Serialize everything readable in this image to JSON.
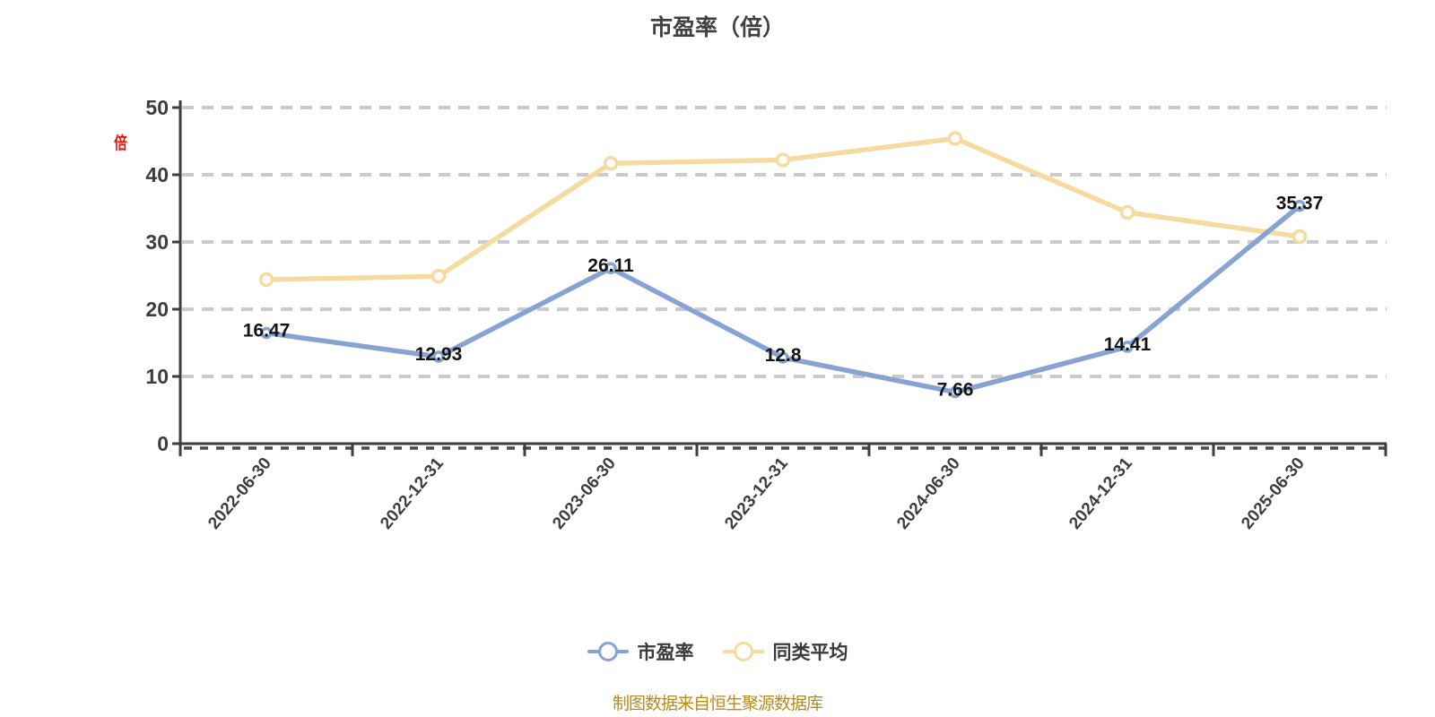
{
  "y_axis_unit": "倍",
  "footer_note": "制图数据来自恒生聚源数据库",
  "colors": {
    "pe_line": "#86a3d4",
    "peer_line": "#f6dba1",
    "grid": "#cbcbcb",
    "axis": "#3d3d3d",
    "data_label": "#141414",
    "title": "#404040",
    "unit_label": "#ea130d",
    "footer": "#b98a1e"
  },
  "chart_data": {
    "type": "line",
    "title": "市盈率（倍）",
    "categories": [
      "2022-06-30",
      "2022-12-31",
      "2023-06-30",
      "2023-12-31",
      "2024-06-30",
      "2024-12-31",
      "2025-06-30"
    ],
    "series": [
      {
        "name": "市盈率",
        "color": "#86a3d4",
        "values": [
          16.47,
          12.93,
          26.11,
          12.8,
          7.66,
          14.41,
          35.37
        ],
        "labels": [
          "16.47",
          "12.93",
          "26.11",
          "12.8",
          "7.66",
          "14.41",
          "35.37"
        ],
        "show_labels": true,
        "marker_radius": 5,
        "z": 2
      },
      {
        "name": "同类平均",
        "color": "#f6dba1",
        "values": [
          24.4,
          24.9,
          41.7,
          42.2,
          45.4,
          34.4,
          30.8
        ],
        "labels": [],
        "show_labels": false,
        "marker_radius": 6.5,
        "z": 1
      }
    ],
    "xlabel": "",
    "ylabel": "倍",
    "ylim": [
      0,
      50
    ],
    "y_interval": 10,
    "grid": true,
    "grid_style": "dashed",
    "legend_position": "bottom"
  }
}
